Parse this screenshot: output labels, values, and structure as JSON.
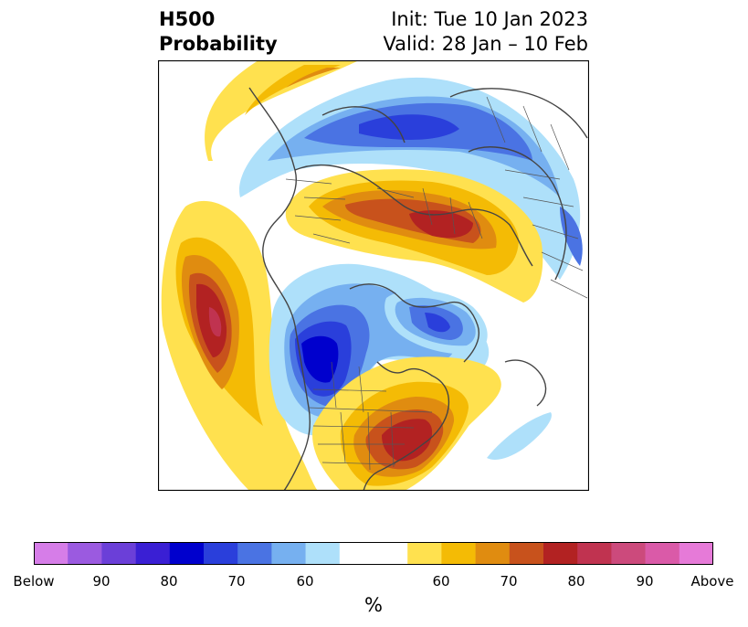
{
  "header": {
    "left_line1": "H500",
    "left_line2": "Probability",
    "right_line1": "Init: Tue 10 Jan 2023",
    "right_line2": "Valid: 28 Jan – 10 Feb"
  },
  "map": {
    "projection": "north-polar-stereographic",
    "features": [
      {
        "id": "north-atlantic-positive",
        "sign": "above",
        "peak_percent": 80
      },
      {
        "id": "arctic-siberia-negative",
        "sign": "below",
        "peak_percent": 75
      },
      {
        "id": "russia-positive",
        "sign": "above",
        "peak_percent": 80
      },
      {
        "id": "pacific-positive",
        "sign": "above",
        "peak_percent": 85
      },
      {
        "id": "western-north-america-negative",
        "sign": "below",
        "peak_percent": 80
      },
      {
        "id": "hudson-bay-negative",
        "sign": "below",
        "peak_percent": 70
      },
      {
        "id": "eastern-us-positive",
        "sign": "above",
        "peak_percent": 80
      },
      {
        "id": "greenland-negative",
        "sign": "below",
        "peak_percent": 60
      },
      {
        "id": "atlantic-negative",
        "sign": "below",
        "peak_percent": 60
      }
    ]
  },
  "colorbar": {
    "unit": "%",
    "colors": [
      "#d67de8",
      "#9b5ae0",
      "#6b3fd8",
      "#3a1fd4",
      "#0000cd",
      "#2a3fdb",
      "#4a73e3",
      "#76b0f0",
      "#aee0fa",
      "#ffffff",
      "#ffe14f",
      "#f4bb05",
      "#e08c10",
      "#c8521c",
      "#b22222",
      "#c03350",
      "#cc4a7c",
      "#da5aa8",
      "#e67ad8"
    ],
    "tick_labels": [
      "Below",
      "90",
      "80",
      "70",
      "60",
      "60",
      "70",
      "80",
      "90",
      "Above"
    ]
  }
}
